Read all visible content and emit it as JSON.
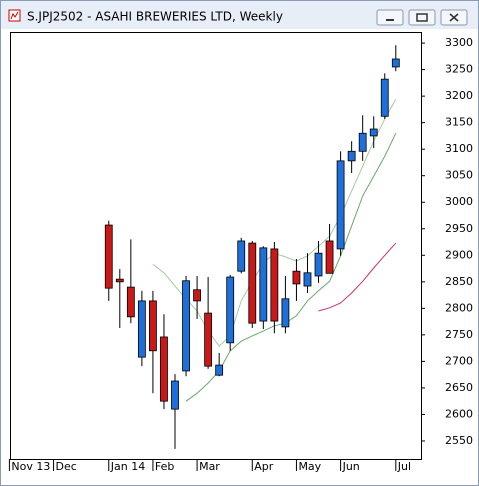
{
  "window": {
    "title": "S.JPJ2502 - ASAHI BREWERIES LTD, Weekly"
  },
  "chart_data": {
    "type": "candlestick",
    "categories": [
      "Nov 13",
      null,
      null,
      null,
      "Dec",
      null,
      null,
      null,
      null,
      "Jan 14",
      null,
      null,
      null,
      "Feb",
      null,
      null,
      null,
      "Mar",
      null,
      null,
      null,
      null,
      "Apr",
      null,
      null,
      null,
      "May",
      null,
      null,
      null,
      "Jun",
      null,
      null,
      null,
      null,
      "Jul"
    ],
    "open": [
      null,
      null,
      null,
      null,
      null,
      null,
      null,
      null,
      null,
      2957,
      2855,
      2840,
      2708,
      2814,
      2746,
      2610,
      2682,
      2835,
      2791,
      2674,
      2735,
      2870,
      2923,
      2776,
      2912,
      2765,
      2870,
      2842,
      2861,
      2927,
      2912,
      3078,
      3096,
      3125,
      3162,
      3255
    ],
    "high": [
      null,
      null,
      null,
      null,
      null,
      null,
      null,
      null,
      null,
      2965,
      2874,
      2930,
      2833,
      2833,
      2789,
      2676,
      2861,
      2861,
      2859,
      2716,
      2863,
      2933,
      2927,
      2917,
      2925,
      2861,
      2893,
      2904,
      2927,
      2959,
      3096,
      3115,
      3164,
      3162,
      3243,
      3296
    ],
    "low": [
      null,
      null,
      null,
      null,
      null,
      null,
      null,
      null,
      null,
      2814,
      2763,
      2772,
      2691,
      2640,
      2610,
      2535,
      2672,
      2780,
      2686,
      2672,
      2720,
      2866,
      2763,
      2761,
      2753,
      2753,
      2814,
      2829,
      2848,
      2866,
      2899,
      3055,
      3078,
      3102,
      3157,
      3247
    ],
    "close": [
      null,
      null,
      null,
      null,
      null,
      null,
      null,
      null,
      null,
      2838,
      2850,
      2784,
      2814,
      2720,
      2625,
      2663,
      2852,
      2814,
      2691,
      2693,
      2859,
      2927,
      2772,
      2914,
      2776,
      2818,
      2846,
      2867,
      2904,
      2866,
      3078,
      3096,
      3130,
      3138,
      3232,
      3270
    ],
    "up_color": "#1e6fd9",
    "down_color": "#c81818",
    "series": [
      {
        "color": "#9ccf9c",
        "values": [
          null,
          null,
          null,
          null,
          null,
          null,
          null,
          null,
          null,
          null,
          null,
          null,
          null,
          2883,
          2867,
          2842,
          2818,
          2795,
          2757,
          2729,
          2748,
          2814,
          2851,
          2885,
          2904,
          2897,
          2889,
          2899,
          2917,
          2936,
          2974,
          3021,
          3068,
          3115,
          3157,
          3194
        ]
      },
      {
        "color": "#6aa86a",
        "values": [
          null,
          null,
          null,
          null,
          null,
          null,
          null,
          null,
          null,
          null,
          null,
          null,
          null,
          null,
          null,
          null,
          2625,
          2640,
          2659,
          2682,
          2720,
          2738,
          2748,
          2757,
          2767,
          2772,
          2786,
          2814,
          2833,
          2851,
          2899,
          2955,
          3012,
          3049,
          3087,
          3130
        ]
      },
      {
        "color": "#d0306a",
        "values": [
          null,
          null,
          null,
          null,
          null,
          null,
          null,
          null,
          null,
          null,
          null,
          null,
          null,
          null,
          null,
          null,
          null,
          null,
          null,
          null,
          null,
          null,
          null,
          null,
          null,
          null,
          null,
          null,
          2795,
          2801,
          2810,
          2829,
          2851,
          2876,
          2900,
          2923
        ]
      }
    ],
    "ylim": [
      2516,
      3319
    ],
    "yticks": [
      2550,
      2600,
      2650,
      2700,
      2750,
      2800,
      2850,
      2900,
      2950,
      3000,
      3050,
      3100,
      3150,
      3200,
      3250,
      3300
    ]
  }
}
